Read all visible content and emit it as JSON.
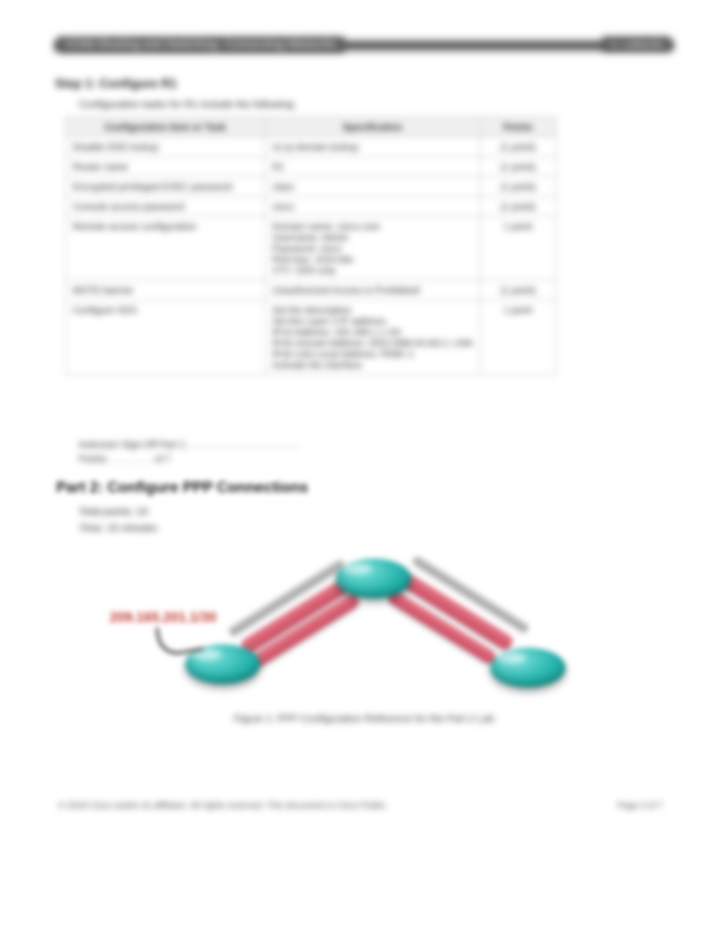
{
  "header": {
    "left": "CCNA Routing and Switching: Connecting Networks",
    "right": "A. Leibovitz"
  },
  "step1": {
    "title": "Step 1:  Configure  R1",
    "subtitle": "Configuration tasks for R1 include the following:"
  },
  "table": {
    "headers": [
      "Configuration Item or Task",
      "Specification",
      "Points"
    ],
    "rows": [
      {
        "cfg": "Disable DNS lookup",
        "spec": "no ip domain-lookup",
        "pts": "(1 point)"
      },
      {
        "cfg": "Router name",
        "spec": "R1",
        "pts": "(1 point)"
      },
      {
        "cfg": "Encrypted privileged EXEC password",
        "spec": "class",
        "pts": "(1 point)"
      },
      {
        "cfg": "Console access password",
        "spec": "cisco",
        "pts": "(1 point)"
      },
      {
        "cfg": "Remote access configuration",
        "spec": "Domain name: cisco.com\nUsername: Admin\nPassword: cisco\nRSA key: 1024 bits\nVTY: SSH only",
        "pts": "1 point"
      },
      {
        "cfg": "MOTD banner",
        "spec": "Unauthorized Access is Prohibited!",
        "pts": "(1 point)"
      },
      {
        "cfg": "Configure G0/1",
        "spec": "Set the description\nSet the Layer 3 IP address\nIPv4 Address: 192.168.1.1 /24\nIPv6 Unicast Address: 2001:DB8:ACAD:1::1/64\nIPv6 Link-Local Address: FE80::1\nActivate the interface",
        "pts": "1 point"
      }
    ]
  },
  "under_table": {
    "line1_prefix": "Instructor Sign-Off Part 1:",
    "line2_prefix": "Points:",
    "line2_suffix": "of 7"
  },
  "part2": {
    "title": "Part 2: Configure PPP Connections",
    "sub1": "Total points: 24",
    "sub2": "Time: 15 minutes"
  },
  "diagram": {
    "label_left": "209.165.201.1/30",
    "caption": "Figure 1: PPP Configuration Reference for the Part 2 Lab"
  },
  "footer": {
    "left": "© 2018 Cisco and/or its affiliates. All rights reserved. This document is Cisco Public.",
    "right": "Page 3 of 7"
  }
}
